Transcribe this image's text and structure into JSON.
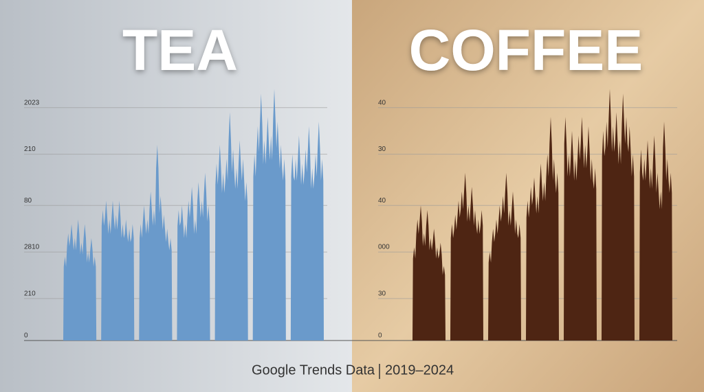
{
  "chart_data": [
    {
      "type": "area",
      "title": "TEA",
      "color": "#6a9acb",
      "ylim": [
        0,
        5.6
      ],
      "yticks": [
        0,
        {
          "value": 0.9,
          "label": "210"
        },
        {
          "value": 1.9,
          "label": "2810"
        },
        {
          "value": 2.9,
          "label": "80"
        },
        {
          "value": 4,
          "label": "210"
        },
        {
          "value": 5,
          "label": "2023"
        }
      ],
      "grid": true,
      "series": [
        {
          "values": [
            1.8,
            2.3,
            2.5,
            2.2,
            2.6,
            2.1,
            2.5,
            1.9,
            2.2,
            1.8
          ]
        },
        {
          "values": [
            2.8,
            3.0,
            2.6,
            3.0,
            2.7,
            3.0,
            2.5,
            2.6,
            2.4,
            2.5
          ]
        },
        {
          "values": [
            2.5,
            2.9,
            2.6,
            3.2,
            2.8,
            4.2,
            3.1,
            2.7,
            2.4,
            2.2
          ]
        },
        {
          "values": [
            2.8,
            2.9,
            2.5,
            3.0,
            3.3,
            2.6,
            3.4,
            3.0,
            3.6,
            2.9
          ]
        },
        {
          "values": [
            3.8,
            4.2,
            3.6,
            3.9,
            4.9,
            4.1,
            3.7,
            4.3,
            3.9,
            3.4
          ]
        },
        {
          "values": [
            4.0,
            4.6,
            5.3,
            4.3,
            4.8,
            4.4,
            5.4,
            4.7,
            4.2,
            3.9
          ]
        },
        {
          "values": [
            4.0,
            3.9,
            4.4,
            3.8,
            4.1,
            4.6,
            3.7,
            4.0,
            4.7,
            3.9
          ]
        }
      ]
    },
    {
      "type": "area",
      "title": "COFFEE",
      "color": "#4e2513",
      "ylim": [
        0,
        5.6
      ],
      "yticks": [
        0,
        {
          "value": 0.9,
          "label": "30"
        },
        {
          "value": 1.9,
          "label": "000"
        },
        {
          "value": 2.9,
          "label": "40"
        },
        {
          "value": 4,
          "label": "30"
        },
        {
          "value": 5,
          "label": "40"
        }
      ],
      "grid": true,
      "series": [
        {
          "values": [
            2.0,
            2.6,
            2.9,
            2.3,
            2.8,
            2.2,
            2.4,
            2.0,
            2.1,
            1.6
          ]
        },
        {
          "values": [
            2.5,
            2.7,
            3.0,
            3.2,
            3.6,
            2.9,
            3.3,
            2.8,
            2.6,
            2.8
          ]
        },
        {
          "values": [
            1.9,
            2.4,
            2.6,
            2.9,
            3.1,
            3.6,
            2.8,
            3.2,
            2.6,
            2.5
          ]
        },
        {
          "values": [
            3.0,
            3.3,
            3.5,
            3.1,
            3.8,
            3.4,
            4.0,
            4.8,
            3.9,
            3.6
          ]
        },
        {
          "values": [
            4.8,
            4.0,
            4.5,
            3.9,
            4.4,
            4.8,
            4.2,
            4.6,
            3.9,
            3.7
          ]
        },
        {
          "values": [
            4.5,
            4.7,
            5.4,
            4.6,
            4.9,
            4.3,
            5.3,
            4.8,
            4.6,
            4.0
          ]
        },
        {
          "values": [
            4.1,
            3.9,
            4.3,
            3.7,
            4.4,
            3.6,
            3.2,
            4.7,
            3.9,
            3.6
          ]
        }
      ]
    }
  ],
  "footer": {
    "source": "Google Trends Data",
    "period": "2019–2024"
  }
}
